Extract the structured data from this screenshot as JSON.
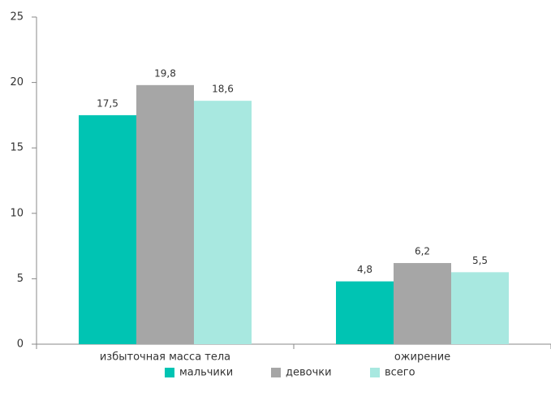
{
  "chart_data": {
    "type": "bar",
    "categories": [
      "избыточная масса тела",
      "ожирение"
    ],
    "series": [
      {
        "name": "мальчики",
        "color": "#00c4b3",
        "values": [
          17.5,
          4.8
        ],
        "value_labels": [
          "17,5",
          "4,8"
        ]
      },
      {
        "name": "девочки",
        "color": "#a6a6a6",
        "values": [
          19.8,
          6.2
        ],
        "value_labels": [
          "19,8",
          "6,2"
        ]
      },
      {
        "name": "всего",
        "color": "#a8e8e0",
        "values": [
          18.6,
          5.5
        ],
        "value_labels": [
          "18,6",
          "5,5"
        ]
      }
    ],
    "ylim": [
      0,
      25
    ],
    "yticks": [
      0,
      5,
      10,
      15,
      20,
      25
    ],
    "grid": false,
    "legend": "bottom"
  }
}
